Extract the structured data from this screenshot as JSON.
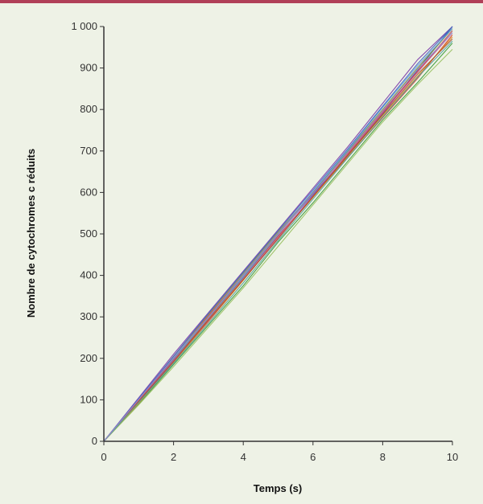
{
  "colors": {
    "background": "#eef2e6",
    "top_rule": "#b04058",
    "axis": "#333333"
  },
  "chart_data": {
    "type": "line",
    "xlabel": "Temps (s)",
    "ylabel": "Nombre de cytochromes c réduits",
    "xlim": [
      0,
      10
    ],
    "ylim": [
      0,
      1000
    ],
    "x_ticks": [
      0,
      2,
      4,
      6,
      8,
      10
    ],
    "y_ticks": [
      0,
      100,
      200,
      300,
      400,
      500,
      600,
      700,
      800,
      900,
      1000
    ],
    "x_tick_labels": [
      "0",
      "2",
      "4",
      "6",
      "8",
      "10"
    ],
    "y_tick_labels": [
      "0",
      "100",
      "200",
      "300",
      "400",
      "500",
      "600",
      "700",
      "800",
      "900",
      "1 000"
    ],
    "grid": false,
    "legend": "none",
    "x": [
      0,
      1,
      2,
      3,
      4,
      5,
      6,
      7,
      8,
      9,
      10
    ],
    "series": [
      {
        "color": "#1f4fa8",
        "values": [
          0,
          100,
          200,
          300,
          400,
          500,
          595,
          690,
          790,
          895,
          1000
        ]
      },
      {
        "color": "#d03a2a",
        "values": [
          0,
          95,
          195,
          295,
          395,
          495,
          590,
          685,
          780,
          875,
          980
        ]
      },
      {
        "color": "#3a9a3a",
        "values": [
          0,
          90,
          185,
          280,
          375,
          480,
          575,
          675,
          775,
          865,
          960
        ]
      },
      {
        "color": "#7a3aa8",
        "values": [
          0,
          105,
          210,
          310,
          410,
          510,
          610,
          710,
          815,
          920,
          1000
        ]
      },
      {
        "color": "#2ab0c8",
        "values": [
          0,
          98,
          198,
          298,
          396,
          498,
          598,
          698,
          796,
          890,
          990
        ]
      },
      {
        "color": "#e08a20",
        "values": [
          0,
          92,
          190,
          288,
          388,
          490,
          588,
          688,
          785,
          880,
          975
        ]
      },
      {
        "color": "#8a8a2a",
        "values": [
          0,
          100,
          205,
          305,
          405,
          505,
          600,
          700,
          800,
          900,
          995
        ]
      },
      {
        "color": "#c84890",
        "values": [
          0,
          97,
          195,
          290,
          392,
          492,
          592,
          692,
          792,
          890,
          985
        ]
      },
      {
        "color": "#5aa0e0",
        "values": [
          0,
          102,
          202,
          302,
          402,
          502,
          602,
          702,
          805,
          905,
          995
        ]
      },
      {
        "color": "#98c060",
        "values": [
          0,
          88,
          180,
          275,
          370,
          470,
          570,
          670,
          770,
          860,
          945
        ]
      },
      {
        "color": "#a05030",
        "values": [
          0,
          96,
          192,
          292,
          390,
          488,
          590,
          690,
          788,
          885,
          970
        ]
      },
      {
        "color": "#4060c0",
        "values": [
          0,
          103,
          205,
          308,
          408,
          508,
          606,
          705,
          808,
          910,
          1000
        ]
      },
      {
        "color": "#e04848",
        "values": [
          0,
          99,
          200,
          302,
          400,
          500,
          598,
          695,
          795,
          892,
          990
        ]
      },
      {
        "color": "#50a0a0",
        "values": [
          0,
          94,
          188,
          284,
          382,
          484,
          584,
          684,
          782,
          878,
          965
        ]
      },
      {
        "color": "#9090d0",
        "values": [
          0,
          101,
          201,
          299,
          399,
          499,
          597,
          697,
          797,
          897,
          985
        ]
      }
    ]
  }
}
